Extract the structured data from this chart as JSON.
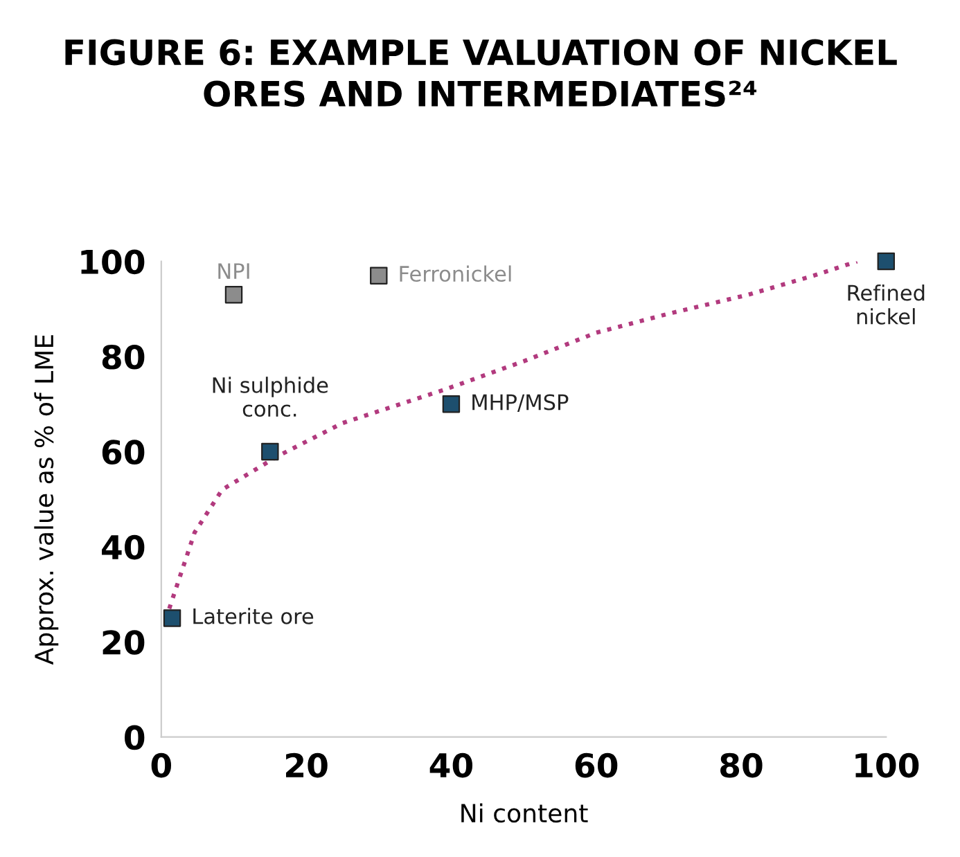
{
  "chart_data": {
    "type": "scatter",
    "title": "FIGURE 6: EXAMPLE VALUATION OF NICKEL\nORES AND INTERMEDIATES²⁴",
    "xlabel": "Ni content",
    "ylabel": "Approx. value as % of LME",
    "xlim": [
      0,
      100
    ],
    "ylim": [
      0,
      100
    ],
    "xticks": [
      0,
      20,
      40,
      60,
      80,
      100
    ],
    "yticks": [
      0,
      20,
      40,
      60,
      80,
      100
    ],
    "grid": false,
    "legend": false,
    "marker": "square",
    "series": [
      {
        "type": "line",
        "line_style": "dotted",
        "marker": "none",
        "color": "#b23a7e",
        "x": [
          1.1,
          4.6,
          8.4,
          16,
          25,
          39,
          50,
          60,
          70,
          81,
          90,
          96
        ],
        "values": [
          27,
          43,
          52,
          59,
          66,
          73,
          79,
          85,
          89,
          93,
          97,
          100
        ]
      },
      {
        "color": "#1d4f6e",
        "x": [
          1.5,
          15,
          40,
          100
        ],
        "values": [
          25,
          60,
          70,
          100
        ]
      },
      {
        "color": "#8c8c8c",
        "x": [
          10,
          30
        ],
        "values": [
          93,
          97
        ]
      }
    ],
    "annotations": [
      {
        "text": "Laterite ore",
        "x": 1.5,
        "y": 25
      },
      {
        "text": "Ni sulphide\nconc.",
        "x": 15,
        "y": 60
      },
      {
        "text": "MHP/MSP",
        "x": 40,
        "y": 70
      },
      {
        "text": "Refined\nnickel",
        "x": 100,
        "y": 100
      },
      {
        "text": "NPI",
        "x": 10,
        "y": 93
      },
      {
        "text": "Ferronickel",
        "x": 30,
        "y": 97
      }
    ]
  }
}
